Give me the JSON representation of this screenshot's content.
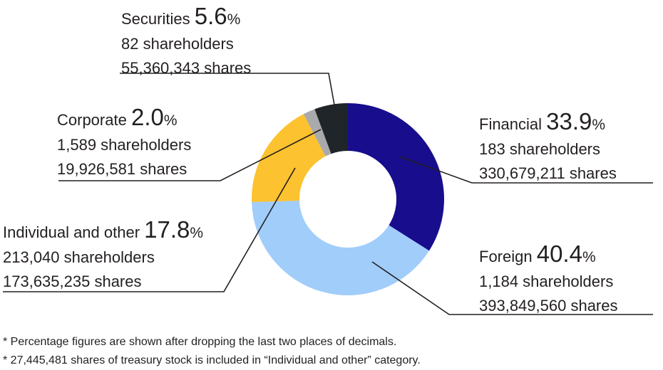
{
  "chart_data": {
    "type": "pie",
    "donut": true,
    "slices": [
      {
        "name": "Financial",
        "percent": 33.9,
        "shareholders": "183 shareholders",
        "shares": "330,679,211 shares",
        "color": "#180d8c"
      },
      {
        "name": "Foreign",
        "percent": 40.4,
        "shareholders": "1,184 shareholders",
        "shares": "393,849,560 shares",
        "color": "#a1cdfa"
      },
      {
        "name": "Individual and other",
        "percent": 17.8,
        "shareholders": "213,040 shareholders",
        "shares": "173,635,235 shares",
        "color": "#fcc22f"
      },
      {
        "name": "Corporate",
        "percent": 2.0,
        "shareholders": "1,589 shareholders",
        "shares": "19,926,581 shares",
        "color": "#a8aaac"
      },
      {
        "name": "Securities",
        "percent": 5.6,
        "shareholders": "82 shareholders",
        "shares": "55,360,343 shares",
        "color": "#1f2529"
      }
    ],
    "labels": {
      "financial": {
        "name": "Financial",
        "value": "33.9",
        "unit": "%"
      },
      "foreign": {
        "name": "Foreign",
        "value": "40.4",
        "unit": "%"
      },
      "individual": {
        "name": "Individual and other",
        "value": "17.8",
        "unit": "%"
      },
      "corporate": {
        "name": "Corporate",
        "value": "2.0",
        "unit": "%"
      },
      "securities": {
        "name": "Securities",
        "value": "5.6",
        "unit": "%"
      }
    },
    "notes": [
      "* Percentage figures are shown after dropping the last two places of decimals.",
      "* 27,445,481 shares of treasury stock is included in “Individual and other” category."
    ]
  }
}
